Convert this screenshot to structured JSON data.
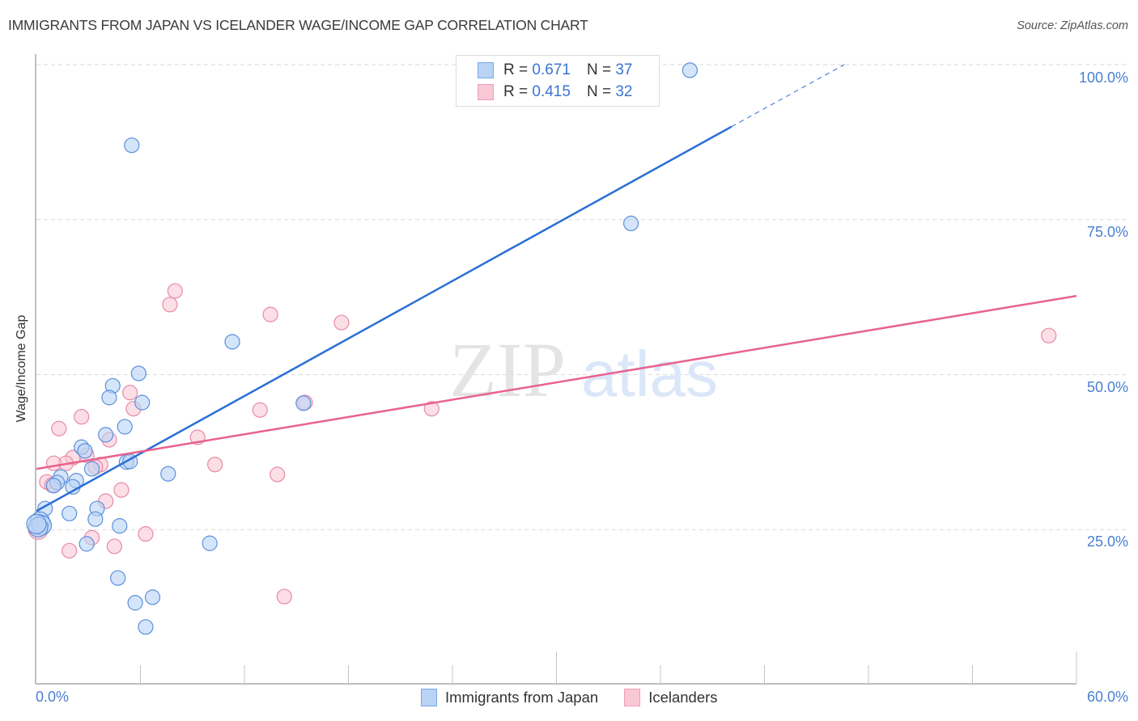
{
  "header": {
    "title": "IMMIGRANTS FROM JAPAN VS ICELANDER WAGE/INCOME GAP CORRELATION CHART",
    "source": "Source: ZipAtlas.com"
  },
  "watermark": {
    "zip": "ZIP",
    "atlas": "atlas"
  },
  "colors": {
    "blue_fill": "#b9d3f5",
    "blue_stroke": "#5a8fdc",
    "blue_line": "#2a6fd6",
    "pink_fill": "#f8c8d6",
    "pink_stroke": "#e88aa6",
    "pink_line": "#e8628e",
    "tick_text": "#4a7fd0",
    "grid": "#d9d9d9"
  },
  "stats_legend": {
    "rows": [
      {
        "r_label": "R =",
        "r_value": "0.671",
        "n_label": "N =",
        "n_value": "37"
      },
      {
        "r_label": "R =",
        "r_value": "0.415",
        "n_label": "N =",
        "n_value": "32"
      }
    ]
  },
  "axes": {
    "ylabel": "Wage/Income Gap",
    "y_ticks": [
      "100.0%",
      "75.0%",
      "50.0%",
      "25.0%"
    ],
    "x_ticks": [
      "0.0%",
      "60.0%"
    ]
  },
  "bottom_legend": {
    "items": [
      {
        "label": "Immigrants from Japan"
      },
      {
        "label": "Icelanders"
      }
    ]
  },
  "chart_data": {
    "type": "scatter",
    "title": "IMMIGRANTS FROM JAPAN VS ICELANDER WAGE/INCOME GAP CORRELATION CHART",
    "xlabel": "",
    "ylabel": "Wage/Income Gap",
    "xlim": [
      0,
      60
    ],
    "ylim": [
      0,
      100
    ],
    "x_tick_labels": [
      "0.0%",
      "60.0%"
    ],
    "y_tick_labels": [
      "25.0%",
      "50.0%",
      "75.0%",
      "100.0%"
    ],
    "grid": true,
    "legend_position": "bottom",
    "series": [
      {
        "name": "Immigrants from Japan",
        "color": "#5a8fdc",
        "r": 0.671,
        "n": 37,
        "trendline": {
          "x": [
            0,
            40.1,
            46.6
          ],
          "y": [
            28.0,
            90.0,
            100.0
          ],
          "dashed_after_x": 40.1
        },
        "points": [
          [
            37.7,
            99.1
          ],
          [
            5.5,
            87.0
          ],
          [
            34.3,
            74.4
          ],
          [
            11.3,
            55.3
          ],
          [
            5.9,
            50.2
          ],
          [
            4.4,
            48.2
          ],
          [
            4.2,
            46.3
          ],
          [
            6.1,
            45.5
          ],
          [
            15.4,
            45.4
          ],
          [
            5.1,
            41.6
          ],
          [
            4.0,
            40.3
          ],
          [
            2.6,
            38.3
          ],
          [
            2.8,
            37.7
          ],
          [
            5.2,
            35.9
          ],
          [
            5.4,
            36.0
          ],
          [
            3.2,
            34.8
          ],
          [
            1.4,
            33.5
          ],
          [
            2.3,
            32.9
          ],
          [
            1.2,
            32.6
          ],
          [
            1.0,
            32.1
          ],
          [
            2.1,
            31.9
          ],
          [
            7.6,
            34.0
          ],
          [
            0.5,
            28.4
          ],
          [
            3.5,
            28.4
          ],
          [
            1.9,
            27.6
          ],
          [
            3.4,
            26.7
          ],
          [
            4.8,
            25.6
          ],
          [
            0.2,
            26.3
          ],
          [
            0.3,
            25.7
          ],
          [
            0.1,
            25.4
          ],
          [
            2.9,
            22.7
          ],
          [
            10.0,
            22.8
          ],
          [
            4.7,
            17.2
          ],
          [
            5.7,
            13.2
          ],
          [
            6.7,
            14.1
          ],
          [
            6.3,
            9.3
          ],
          [
            0.0,
            25.9
          ]
        ]
      },
      {
        "name": "Icelanders",
        "color": "#e88aa6",
        "r": 0.415,
        "n": 32,
        "trendline": {
          "x": [
            0,
            60
          ],
          "y": [
            34.8,
            62.7
          ]
        },
        "points": [
          [
            8.0,
            63.5
          ],
          [
            7.7,
            61.3
          ],
          [
            13.5,
            59.7
          ],
          [
            17.6,
            58.4
          ],
          [
            58.4,
            56.3
          ],
          [
            5.4,
            47.1
          ],
          [
            5.6,
            44.5
          ],
          [
            12.9,
            44.3
          ],
          [
            15.5,
            45.5
          ],
          [
            22.8,
            44.5
          ],
          [
            2.6,
            43.2
          ],
          [
            1.3,
            41.3
          ],
          [
            9.3,
            39.9
          ],
          [
            4.2,
            39.5
          ],
          [
            2.9,
            37.0
          ],
          [
            2.1,
            36.6
          ],
          [
            1.7,
            35.7
          ],
          [
            1.0,
            35.7
          ],
          [
            3.7,
            35.5
          ],
          [
            3.4,
            35.1
          ],
          [
            10.3,
            35.5
          ],
          [
            13.9,
            33.9
          ],
          [
            0.6,
            32.7
          ],
          [
            0.9,
            32.2
          ],
          [
            4.9,
            31.4
          ],
          [
            4.0,
            29.6
          ],
          [
            6.3,
            24.3
          ],
          [
            3.2,
            23.7
          ],
          [
            4.5,
            22.3
          ],
          [
            1.9,
            21.6
          ],
          [
            14.3,
            14.2
          ],
          [
            0.1,
            25.0
          ]
        ]
      }
    ]
  }
}
